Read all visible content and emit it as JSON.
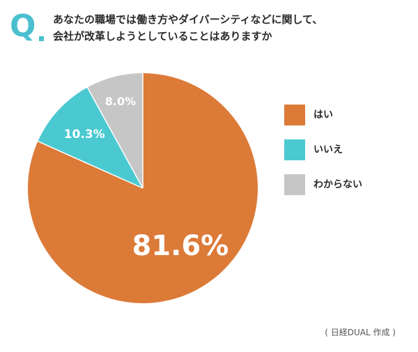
{
  "header": {
    "q_letter": "Q",
    "title_line1": "あなたの職場では働き方やダイバーシティなどに関して、",
    "title_line2": "会社が改革しようとしていることはありますか"
  },
  "chart_data": {
    "type": "pie",
    "title": "あなたの職場では働き方やダイバーシティなどに関して、会社が改革しようとしていることはありますか",
    "categories": [
      "はい",
      "いいえ",
      "わからない"
    ],
    "values": [
      81.6,
      10.3,
      8.0
    ],
    "labels": [
      "81.6%",
      "10.3%",
      "8.0%"
    ],
    "colors": [
      "#dc7a38",
      "#4bc9d1",
      "#c6c6c6"
    ],
    "start_angle": "12 o'clock",
    "direction": "clockwise",
    "legend_position": "right"
  },
  "legend": [
    {
      "label": "はい",
      "color": "#dc7a38"
    },
    {
      "label": "いいえ",
      "color": "#4bc9d1"
    },
    {
      "label": "わからない",
      "color": "#c6c6c6"
    }
  ],
  "source": "( 日経DUAL 作成 )"
}
